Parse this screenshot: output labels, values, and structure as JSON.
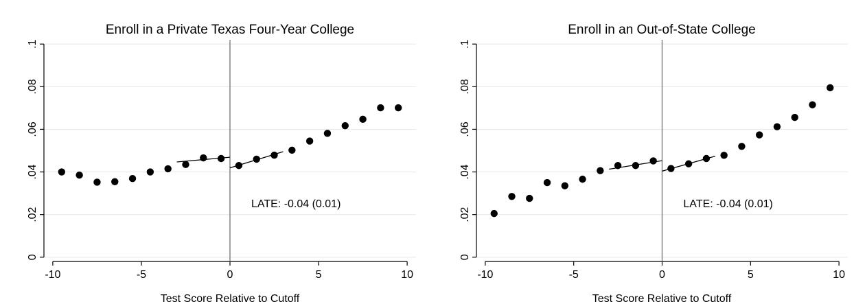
{
  "colors": {
    "background": "#ffffff",
    "grid": "#e6ece9",
    "axis": "#000000",
    "cutoff": "#7a7a7a",
    "marker": "#000000"
  },
  "chart_data": [
    {
      "type": "scatter",
      "title": "Enroll in a Private Texas Four-Year College",
      "xlabel": "Test Score Relative to Cutoff",
      "ylabel": "",
      "xlim": [
        -10.5,
        10.5
      ],
      "ylim": [
        -0.002,
        0.102
      ],
      "xticks": [
        -10,
        -5,
        0,
        5,
        10
      ],
      "xtick_labels": [
        "-10",
        "-5",
        "0",
        "5",
        "10"
      ],
      "yticks": [
        0,
        0.02,
        0.04,
        0.06,
        0.08,
        0.1
      ],
      "ytick_labels": [
        "0",
        ".02",
        ".04",
        ".06",
        ".08",
        ".1"
      ],
      "grid": true,
      "cutoff_line_x": 0,
      "points": {
        "x": [
          -9.5,
          -8.5,
          -7.5,
          -6.5,
          -5.5,
          -4.5,
          -3.5,
          -2.5,
          -1.5,
          -0.5,
          0.5,
          1.5,
          2.5,
          3.5,
          4.5,
          5.5,
          6.5,
          7.5,
          8.5,
          9.5
        ],
        "y": [
          0.04,
          0.0385,
          0.0352,
          0.0354,
          0.0369,
          0.04,
          0.0415,
          0.0435,
          0.0466,
          0.0463,
          0.043,
          0.046,
          0.0479,
          0.0502,
          0.0545,
          0.0581,
          0.0617,
          0.0647,
          0.0701,
          0.0701
        ]
      },
      "fit_lines": [
        {
          "x": [
            -3,
            0
          ],
          "y": [
            0.0447,
            0.0469
          ]
        },
        {
          "x": [
            0,
            3
          ],
          "y": [
            0.0419,
            0.0495
          ]
        }
      ],
      "annotation": {
        "text": "LATE: -0.04 (0.01)",
        "x": 1.2,
        "y": 0.0235
      }
    },
    {
      "type": "scatter",
      "title": "Enroll in an Out-of-State College",
      "xlabel": "Test Score Relative to Cutoff",
      "ylabel": "",
      "xlim": [
        -10.5,
        10.5
      ],
      "ylim": [
        -0.002,
        0.102
      ],
      "xticks": [
        -10,
        -5,
        0,
        5,
        10
      ],
      "xtick_labels": [
        "-10",
        "-5",
        "0",
        "5",
        "10"
      ],
      "yticks": [
        0,
        0.02,
        0.04,
        0.06,
        0.08,
        0.1
      ],
      "ytick_labels": [
        "0",
        ".02",
        ".04",
        ".06",
        ".08",
        ".1"
      ],
      "grid": true,
      "cutoff_line_x": 0,
      "points": {
        "x": [
          -9.5,
          -8.5,
          -7.5,
          -6.5,
          -5.5,
          -4.5,
          -3.5,
          -2.5,
          -1.5,
          -0.5,
          0.5,
          1.5,
          2.5,
          3.5,
          4.5,
          5.5,
          6.5,
          7.5,
          8.5,
          9.5
        ],
        "y": [
          0.0205,
          0.0285,
          0.0276,
          0.035,
          0.0335,
          0.0366,
          0.0406,
          0.043,
          0.043,
          0.0452,
          0.0416,
          0.0438,
          0.0463,
          0.0478,
          0.052,
          0.0574,
          0.0612,
          0.0656,
          0.0715,
          0.0795
        ]
      },
      "fit_lines": [
        {
          "x": [
            -3,
            0
          ],
          "y": [
            0.0413,
            0.0453
          ]
        },
        {
          "x": [
            0,
            3
          ],
          "y": [
            0.0404,
            0.0474
          ]
        }
      ],
      "annotation": {
        "text": "LATE: -0.04 (0.01)",
        "x": 1.2,
        "y": 0.0235
      }
    }
  ]
}
